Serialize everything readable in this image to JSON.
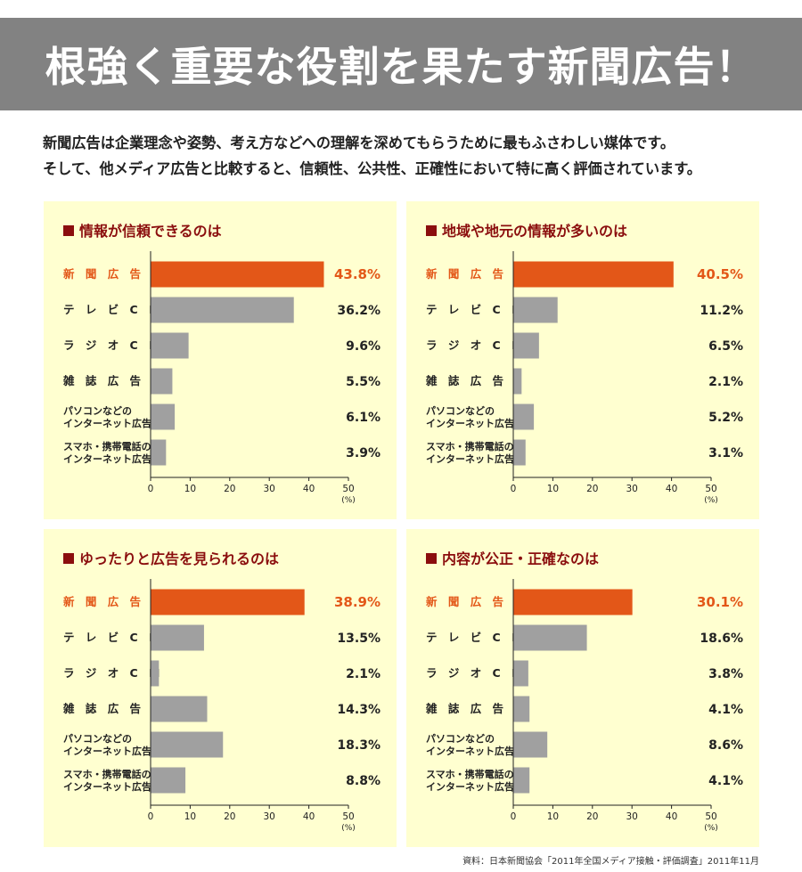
{
  "title": "根強く重要な役割を果たす新聞広告！",
  "intro_lines": [
    "新聞広告は企業理念や姿勢、考え方などへの理解を深めてもらうために最もふさわしい媒体です。",
    "そして、他メディア広告と比較すると、信頼性、公共性、正確性において特に高く評価されています。"
  ],
  "source": "資料：日本新聞協会「2011年全国メディア接触・評価調査」2011年11月",
  "colors": {
    "highlight": "#e35718",
    "bar": "#a0a0a0",
    "panel_bg": "#ffffd0",
    "title": "#8b0e0e",
    "banner": "#828282"
  },
  "chart_data": [
    {
      "type": "bar",
      "title": "情報が信頼できるのは",
      "categories": [
        "新聞広告",
        "テレビCM",
        "ラジオCM",
        "雑誌広告",
        "パソコンなどのインターネット広告",
        "スマホ・携帯電話のインターネット広告"
      ],
      "category_labels": [
        [
          "新 聞 広 告"
        ],
        [
          "テ レ ビ C M"
        ],
        [
          "ラ ジ オ C M"
        ],
        [
          "雑 誌 広 告"
        ],
        [
          "パソコンなどの",
          "インターネット広告"
        ],
        [
          "スマホ・携帯電話の",
          "インターネット広告"
        ]
      ],
      "values": [
        43.8,
        36.2,
        9.6,
        5.5,
        6.1,
        3.9
      ],
      "value_labels": [
        "43.8%",
        "36.2%",
        "9.6%",
        "5.5%",
        "6.1%",
        "3.9%"
      ],
      "xlim": [
        0,
        50
      ],
      "ticks": [
        "0",
        "10",
        "20",
        "30",
        "40",
        "50"
      ],
      "unit": "(%)"
    },
    {
      "type": "bar",
      "title": "地域や地元の情報が多いのは",
      "categories": [
        "新聞広告",
        "テレビCM",
        "ラジオCM",
        "雑誌広告",
        "パソコンなどのインターネット広告",
        "スマホ・携帯電話のインターネット広告"
      ],
      "category_labels": [
        [
          "新 聞 広 告"
        ],
        [
          "テ レ ビ C M"
        ],
        [
          "ラ ジ オ C M"
        ],
        [
          "雑 誌 広 告"
        ],
        [
          "パソコンなどの",
          "インターネット広告"
        ],
        [
          "スマホ・携帯電話の",
          "インターネット広告"
        ]
      ],
      "values": [
        40.5,
        11.2,
        6.5,
        2.1,
        5.2,
        3.1
      ],
      "value_labels": [
        "40.5%",
        "11.2%",
        "6.5%",
        "2.1%",
        "5.2%",
        "3.1%"
      ],
      "xlim": [
        0,
        50
      ],
      "ticks": [
        "0",
        "10",
        "20",
        "30",
        "40",
        "50"
      ],
      "unit": "(%)"
    },
    {
      "type": "bar",
      "title": "ゆったりと広告を見られるのは",
      "categories": [
        "新聞広告",
        "テレビCM",
        "ラジオCM",
        "雑誌広告",
        "パソコンなどのインターネット広告",
        "スマホ・携帯電話のインターネット広告"
      ],
      "category_labels": [
        [
          "新 聞 広 告"
        ],
        [
          "テ レ ビ C M"
        ],
        [
          "ラ ジ オ C M"
        ],
        [
          "雑 誌 広 告"
        ],
        [
          "パソコンなどの",
          "インターネット広告"
        ],
        [
          "スマホ・携帯電話の",
          "インターネット広告"
        ]
      ],
      "values": [
        38.9,
        13.5,
        2.1,
        14.3,
        18.3,
        8.8
      ],
      "value_labels": [
        "38.9%",
        "13.5%",
        "2.1%",
        "14.3%",
        "18.3%",
        "8.8%"
      ],
      "xlim": [
        0,
        50
      ],
      "ticks": [
        "0",
        "10",
        "20",
        "30",
        "40",
        "50"
      ],
      "unit": "(%)"
    },
    {
      "type": "bar",
      "title": "内容が公正・正確なのは",
      "categories": [
        "新聞広告",
        "テレビCM",
        "ラジオCM",
        "雑誌広告",
        "パソコンなどのインターネット広告",
        "スマホ・携帯電話のインターネット広告"
      ],
      "category_labels": [
        [
          "新 聞 広 告"
        ],
        [
          "テ レ ビ C M"
        ],
        [
          "ラ ジ オ C M"
        ],
        [
          "雑 誌 広 告"
        ],
        [
          "パソコンなどの",
          "インターネット広告"
        ],
        [
          "スマホ・携帯電話の",
          "インターネット広告"
        ]
      ],
      "values": [
        30.1,
        18.6,
        3.8,
        4.1,
        8.6,
        4.1
      ],
      "value_labels": [
        "30.1%",
        "18.6%",
        "3.8%",
        "4.1%",
        "8.6%",
        "4.1%"
      ],
      "xlim": [
        0,
        50
      ],
      "ticks": [
        "0",
        "10",
        "20",
        "30",
        "40",
        "50"
      ],
      "unit": "(%)"
    }
  ]
}
